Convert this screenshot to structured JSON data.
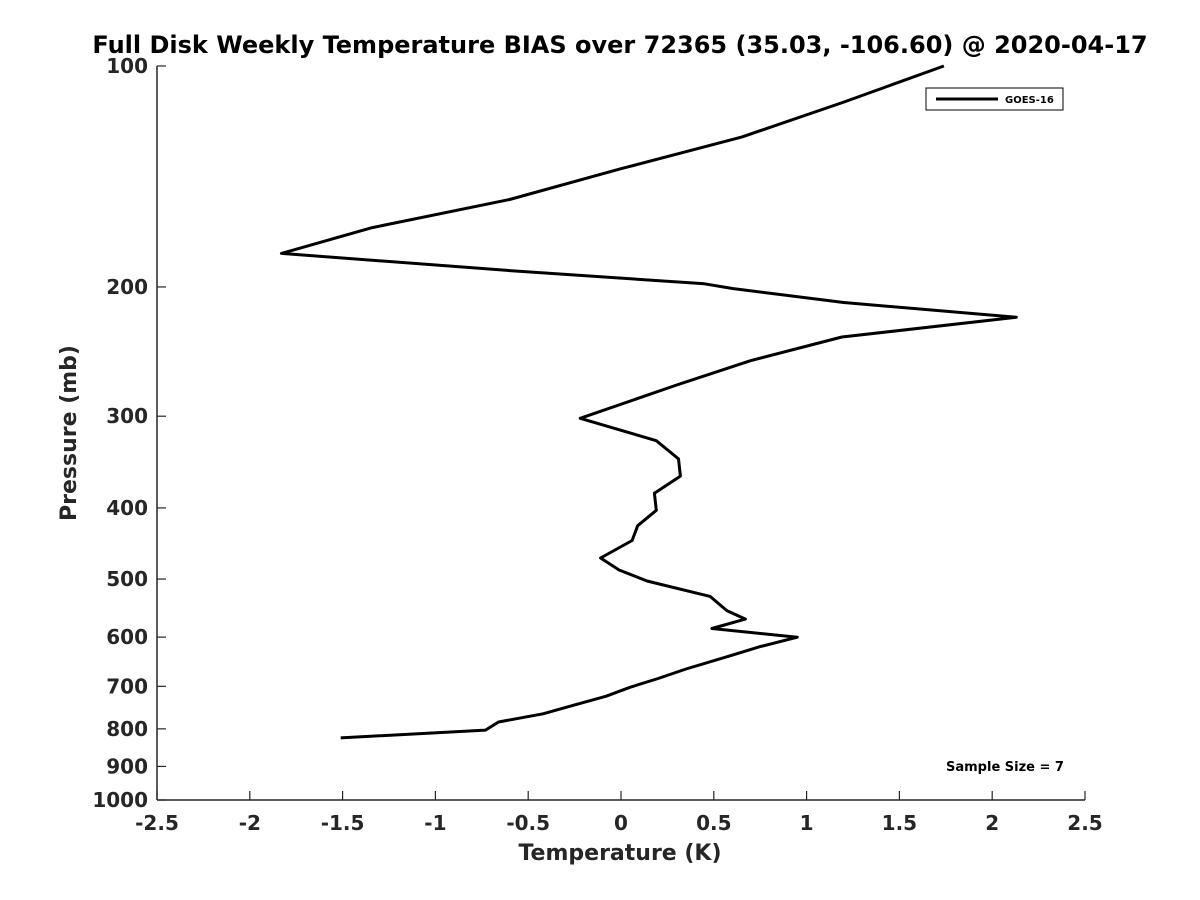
{
  "chart_data": {
    "type": "line",
    "title": "Full Disk Weekly Temperature BIAS over 72365 (35.03, -106.60) @ 2020-04-17",
    "xlabel": "Temperature (K)",
    "ylabel": "Pressure (mb)",
    "xlim": [
      -2.5,
      2.5
    ],
    "ylim": [
      100,
      1000
    ],
    "y_scale": "log",
    "y_reversed": true,
    "x_ticks": [
      "-2.5",
      "-2",
      "-1.5",
      "-1",
      "-0.5",
      "0",
      "0.5",
      "1",
      "1.5",
      "2",
      "2.5"
    ],
    "y_ticks": [
      "100",
      "200",
      "300",
      "400",
      "500",
      "600",
      "700",
      "800",
      "900",
      "1000"
    ],
    "grid": false,
    "legend_position": "top-right",
    "series": [
      {
        "name": "GOES-16",
        "color": "#000000",
        "points": [
          [
            1.74,
            100
          ],
          [
            1.2,
            112
          ],
          [
            0.65,
            125
          ],
          [
            0.0,
            138
          ],
          [
            -0.6,
            152
          ],
          [
            -1.34,
            166
          ],
          [
            -1.83,
            180
          ],
          [
            -0.6,
            190
          ],
          [
            0.45,
            198
          ],
          [
            0.6,
            201
          ],
          [
            1.2,
            210
          ],
          [
            2.13,
            220
          ],
          [
            1.19,
            234
          ],
          [
            0.7,
            252
          ],
          [
            0.3,
            272
          ],
          [
            -0.22,
            302
          ],
          [
            0.19,
            324
          ],
          [
            0.31,
            343
          ],
          [
            0.32,
            362
          ],
          [
            0.18,
            382
          ],
          [
            0.19,
            403
          ],
          [
            0.09,
            423
          ],
          [
            0.06,
            443
          ],
          [
            -0.11,
            468
          ],
          [
            -0.01,
            486
          ],
          [
            0.14,
            503
          ],
          [
            0.48,
            528
          ],
          [
            0.57,
            552
          ],
          [
            0.67,
            567
          ],
          [
            0.49,
            584
          ],
          [
            0.95,
            600
          ],
          [
            0.75,
            618
          ],
          [
            0.59,
            636
          ],
          [
            0.35,
            663
          ],
          [
            0.2,
            683
          ],
          [
            0.05,
            702
          ],
          [
            -0.08,
            722
          ],
          [
            -0.25,
            742
          ],
          [
            -0.42,
            763
          ],
          [
            -0.66,
            783
          ],
          [
            -0.73,
            803
          ],
          [
            -1.51,
            823
          ]
        ]
      }
    ],
    "annotations": [
      "Sample Size = 7"
    ]
  }
}
